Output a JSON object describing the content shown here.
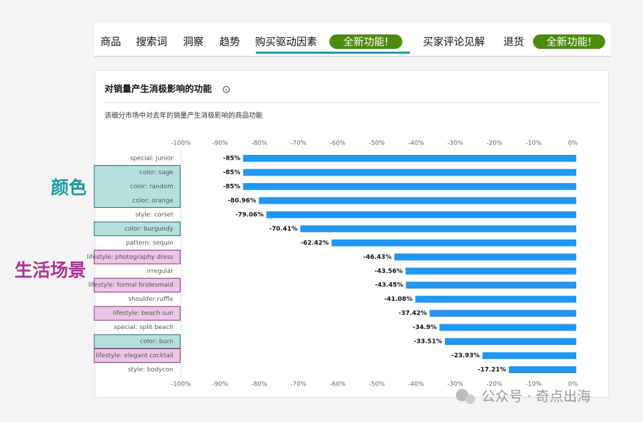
{
  "tabs": [
    "商品",
    "搜索词",
    "洞察",
    "趋势",
    "购买驱动因素",
    "买家评论见解",
    "退货"
  ],
  "badges": [
    "全新功能!",
    "全新功能!"
  ],
  "panel": {
    "title": "对销量产生消极影响的功能",
    "subtitle": "该细分市场中对去年的销量产生消极影响的商品功能"
  },
  "annotations": [
    "颜色",
    "生活场景"
  ],
  "watermark": "公众号 · 奇点出海",
  "chart_data": {
    "type": "hbar",
    "categories": [
      "special: junior",
      "color: sage",
      "color: random",
      "color: orange",
      "style: corset",
      "color: burgundy",
      "pattern: sequin",
      "lifestyle: photography dress",
      "irregular",
      "lifestyle: formal bridesmaid",
      "shoulder ruffle",
      "lifestyle: beach sun",
      "special: split beach",
      "color: burn",
      "lifestyle: elegant cocktail",
      "style: bodycon"
    ],
    "values": [
      -85,
      -85,
      -85,
      -80.96,
      -79.06,
      -70.41,
      -62.42,
      -46.43,
      -43.56,
      -43.45,
      -41.08,
      -37.42,
      -34.9,
      -33.51,
      -23.93,
      -17.21
    ],
    "value_labels": [
      "-85%",
      "-85%",
      "-85%",
      "-80.96%",
      "-79.06%",
      "-70.41%",
      "-62.42%",
      "-46.43%",
      "-43.56%",
      "-43.45%",
      "-41.08%",
      "-37.42%",
      "-34.9%",
      "-33.51%",
      "-23.93%",
      "-17.21%"
    ],
    "color": "#2196f3",
    "xlim": [
      -100,
      0
    ],
    "xticks": [
      {
        "value": -100,
        "label": "-100%"
      },
      {
        "value": -90,
        "label": "-90%"
      },
      {
        "value": -80,
        "label": "-80%"
      },
      {
        "value": -70,
        "label": "-70%"
      },
      {
        "value": -60,
        "label": "-60%"
      },
      {
        "value": -50,
        "label": "-50%"
      },
      {
        "value": -40,
        "label": "-40%"
      },
      {
        "value": -30,
        "label": "-30%"
      },
      {
        "value": -20,
        "label": "-20%"
      },
      {
        "value": -10,
        "label": "-10%"
      },
      {
        "value": 0,
        "label": "0%"
      }
    ]
  }
}
